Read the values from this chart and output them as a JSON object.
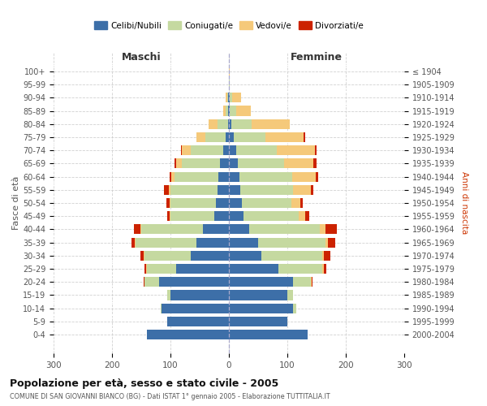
{
  "age_groups": [
    "0-4",
    "5-9",
    "10-14",
    "15-19",
    "20-24",
    "25-29",
    "30-34",
    "35-39",
    "40-44",
    "45-49",
    "50-54",
    "55-59",
    "60-64",
    "65-69",
    "70-74",
    "75-79",
    "80-84",
    "85-89",
    "90-94",
    "95-99",
    "100+"
  ],
  "birth_years": [
    "2000-2004",
    "1995-1999",
    "1990-1994",
    "1985-1989",
    "1980-1984",
    "1975-1979",
    "1970-1974",
    "1965-1969",
    "1960-1964",
    "1955-1959",
    "1950-1954",
    "1945-1949",
    "1940-1944",
    "1935-1939",
    "1930-1934",
    "1925-1929",
    "1920-1924",
    "1915-1919",
    "1910-1914",
    "1905-1909",
    "≤ 1904"
  ],
  "colors": {
    "celibi": "#3d6fa8",
    "coniugati": "#c5d9a0",
    "vedovi": "#f5c97a",
    "divorziati": "#cc2200"
  },
  "maschi": {
    "celibi": [
      140,
      105,
      115,
      100,
      120,
      90,
      65,
      55,
      45,
      25,
      22,
      20,
      18,
      15,
      10,
      5,
      2,
      1,
      1,
      0,
      0
    ],
    "coniugati": [
      0,
      0,
      2,
      5,
      25,
      50,
      80,
      105,
      105,
      75,
      78,
      80,
      75,
      65,
      55,
      35,
      18,
      4,
      2,
      0,
      0
    ],
    "vedovi": [
      0,
      0,
      0,
      0,
      0,
      2,
      1,
      1,
      2,
      2,
      2,
      3,
      5,
      10,
      15,
      15,
      15,
      5,
      2,
      0,
      0
    ],
    "divorziati": [
      0,
      0,
      0,
      0,
      1,
      2,
      5,
      5,
      10,
      4,
      5,
      8,
      4,
      3,
      2,
      0,
      0,
      0,
      0,
      0,
      0
    ]
  },
  "femmine": {
    "celibi": [
      135,
      100,
      110,
      100,
      110,
      85,
      55,
      50,
      35,
      25,
      22,
      20,
      18,
      15,
      12,
      8,
      4,
      2,
      1,
      0,
      0
    ],
    "coniugati": [
      0,
      0,
      5,
      10,
      30,
      75,
      105,
      115,
      120,
      95,
      85,
      90,
      90,
      80,
      70,
      55,
      35,
      10,
      5,
      1,
      0
    ],
    "vedovi": [
      0,
      0,
      0,
      0,
      1,
      2,
      3,
      5,
      10,
      10,
      15,
      30,
      40,
      50,
      65,
      65,
      65,
      25,
      15,
      1,
      1
    ],
    "divorziati": [
      0,
      0,
      0,
      0,
      2,
      5,
      10,
      12,
      20,
      8,
      5,
      5,
      5,
      5,
      3,
      2,
      0,
      0,
      0,
      0,
      0
    ]
  },
  "title": "Popolazione per età, sesso e stato civile - 2005",
  "subtitle": "COMUNE DI SAN GIOVANNI BIANCO (BG) - Dati ISTAT 1° gennaio 2005 - Elaborazione TUTTITALIA.IT",
  "ylabel_left": "Fasce di età",
  "ylabel_right": "Anni di nascita",
  "xlim": 300,
  "bg_color": "#ffffff",
  "grid_color": "#cccccc",
  "legend_labels": [
    "Celibi/Nubili",
    "Coniugati/e",
    "Vedovi/e",
    "Divorziati/e"
  ]
}
